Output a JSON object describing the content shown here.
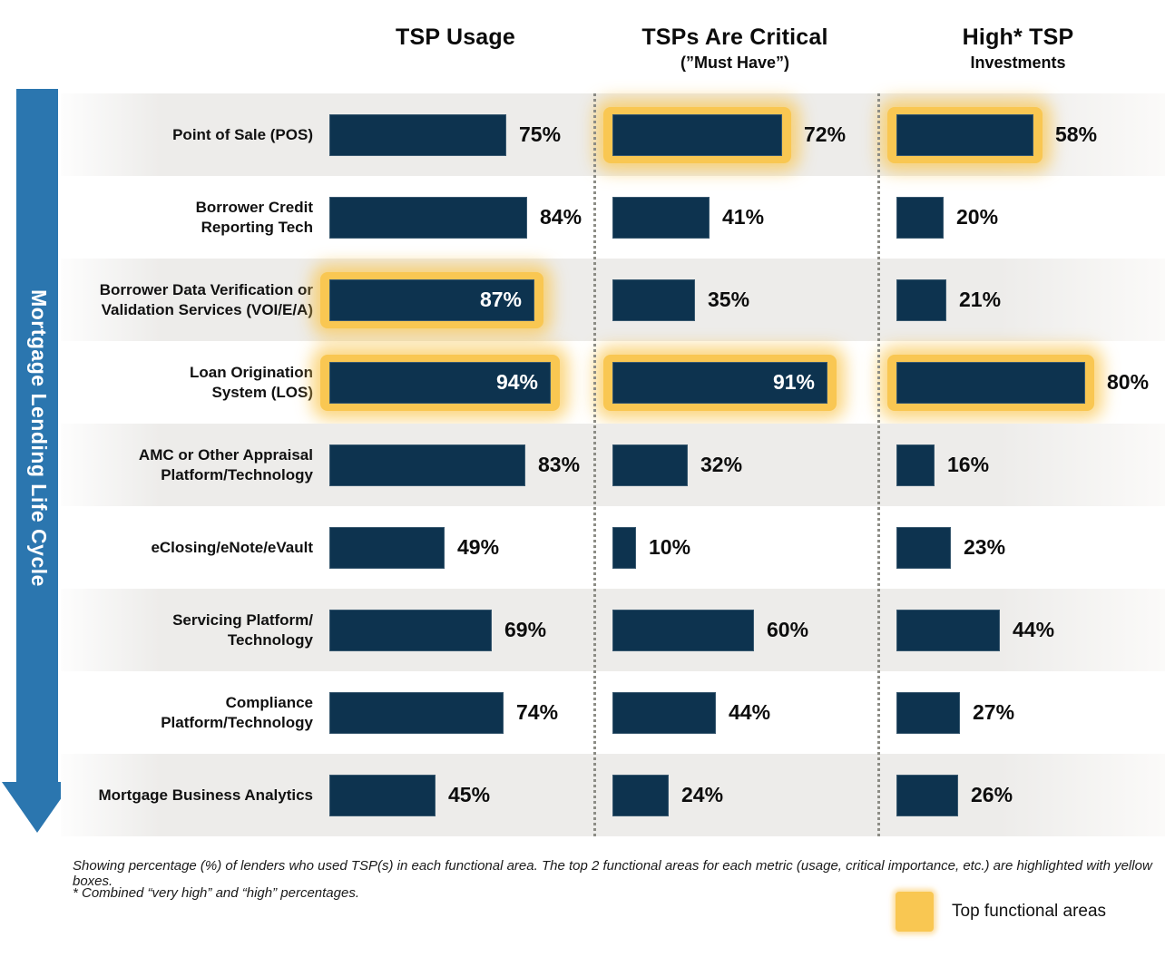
{
  "columns": [
    {
      "title": "TSP Usage",
      "subtitle": ""
    },
    {
      "title": "TSPs Are Critical",
      "subtitle": "(”Must Have”)"
    },
    {
      "title": "High* TSP",
      "subtitle": "Investments"
    }
  ],
  "axis_label": "Mortgage Lending Life Cycle",
  "legend": {
    "label": "Top functional areas"
  },
  "footnotes": [
    "Showing percentage (%)  of lenders who used TSP(s) in each functional area.  The top 2 functional areas for each  metric (usage, critical importance, etc.) are highlighted with yellow boxes.",
    "* Combined “very high” and “high” percentages."
  ],
  "colors": {
    "bar": "#0d334f",
    "highlight": "#f9c752",
    "arrow": "#2b76af",
    "row_gray": "#edecea",
    "text": "#111111"
  },
  "chart_data": {
    "type": "bar",
    "orientation": "horizontal",
    "unit": "%",
    "value_range": [
      0,
      100
    ],
    "categories": [
      "Point of Sale (POS)",
      "Borrower Credit Reporting Tech",
      "Borrower Data Verification or Validation Services (VOI/E/A)",
      "Loan Origination System (LOS)",
      "AMC or Other Appraisal Platform/Technology",
      "eClosing/eNote/eVault",
      "Servicing Platform/Technology",
      "Compliance Platform/Technology",
      "Mortgage Business Analytics"
    ],
    "categories_lines": [
      [
        "Point of Sale (POS)"
      ],
      [
        "Borrower Credit",
        "Reporting Tech"
      ],
      [
        "Borrower Data Verification or",
        "Validation Services (VOI/E/A)"
      ],
      [
        "Loan Origination",
        "System (LOS)"
      ],
      [
        "AMC or Other Appraisal",
        "Platform/Technology"
      ],
      [
        "eClosing/eNote/eVault"
      ],
      [
        "Servicing Platform/",
        "Technology"
      ],
      [
        "Compliance",
        "Platform/Technology"
      ],
      [
        "Mortgage Business Analytics"
      ]
    ],
    "series": [
      {
        "name": "TSP Usage",
        "values": [
          75,
          84,
          87,
          94,
          83,
          49,
          69,
          74,
          45
        ],
        "highlight": [
          false,
          false,
          true,
          true,
          false,
          false,
          false,
          false,
          false
        ],
        "label_inside": [
          false,
          false,
          true,
          true,
          false,
          false,
          false,
          false,
          false
        ]
      },
      {
        "name": "TSPs Are Critical (”Must Have”)",
        "values": [
          72,
          41,
          35,
          91,
          32,
          10,
          60,
          44,
          24
        ],
        "highlight": [
          true,
          false,
          false,
          true,
          false,
          false,
          false,
          false,
          false
        ],
        "label_inside": [
          false,
          false,
          false,
          true,
          false,
          false,
          false,
          false,
          false
        ]
      },
      {
        "name": "High* TSP Investments",
        "values": [
          58,
          20,
          21,
          80,
          16,
          23,
          44,
          27,
          26
        ],
        "highlight": [
          true,
          false,
          false,
          true,
          false,
          false,
          false,
          false,
          false
        ],
        "label_inside": [
          false,
          false,
          false,
          false,
          false,
          false,
          false,
          false,
          false
        ]
      }
    ]
  }
}
